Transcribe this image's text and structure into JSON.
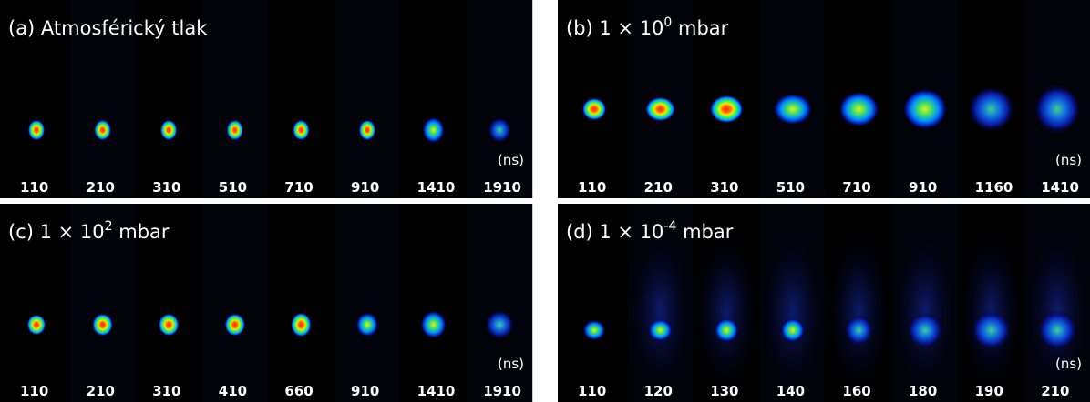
{
  "unit": "(ns)",
  "panels": [
    {
      "title": "(a) Atmosférický tlak",
      "times": [
        110,
        210,
        310,
        510,
        710,
        910,
        1410,
        1910
      ]
    },
    {
      "title": "(b) 1 × 10",
      "exponent": "0",
      "title_end": " mbar",
      "times": [
        110,
        210,
        310,
        510,
        710,
        910,
        1160,
        1410
      ]
    },
    {
      "title": "(c) 1 × 10",
      "exponent": "2",
      "title_end": " mbar",
      "times": [
        110,
        210,
        310,
        410,
        660,
        910,
        1410,
        1910
      ]
    },
    {
      "title": "(d) 1 × 10",
      "exponent": "-4",
      "title_end": " mbar",
      "times": [
        110,
        120,
        130,
        140,
        160,
        180,
        190,
        210
      ]
    }
  ]
}
